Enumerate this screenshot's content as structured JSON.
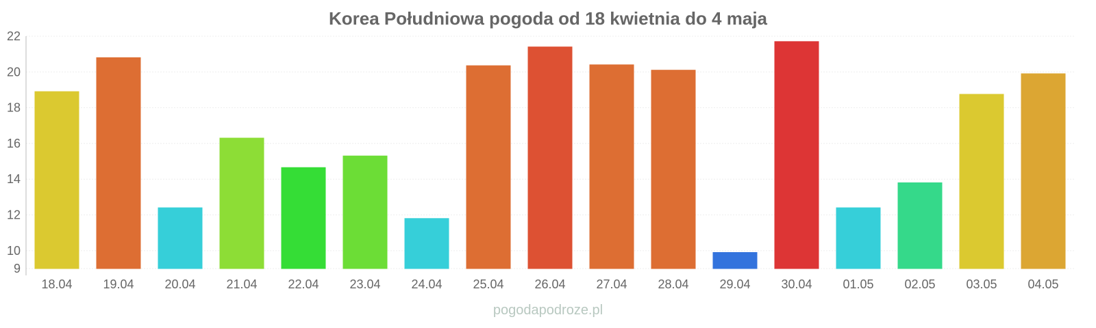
{
  "chart_data": {
    "type": "bar",
    "title": "Korea Południowa pogoda od 18 kwietnia do 4 maja",
    "xlabel": "",
    "ylabel": "",
    "ylim": [
      9,
      22
    ],
    "yticks": [
      9,
      10,
      12,
      14,
      16,
      18,
      20,
      22
    ],
    "grid": true,
    "categories": [
      "18.04",
      "19.04",
      "20.04",
      "21.04",
      "22.04",
      "23.04",
      "24.04",
      "25.04",
      "26.04",
      "27.04",
      "28.04",
      "29.04",
      "30.04",
      "01.05",
      "02.05",
      "03.05",
      "04.05"
    ],
    "values": [
      18.9,
      20.8,
      12.4,
      16.3,
      14.65,
      15.3,
      11.8,
      20.35,
      21.4,
      20.4,
      20.1,
      9.9,
      21.7,
      12.4,
      13.8,
      18.75,
      19.9
    ],
    "colors": [
      "#dbc930",
      "#dd6e33",
      "#36cfd9",
      "#8ddd36",
      "#35dd36",
      "#6cdd36",
      "#36cfd9",
      "#dd6e33",
      "#dd5133",
      "#dd6e33",
      "#dd6e33",
      "#3373dd",
      "#dd3535",
      "#36cfd9",
      "#35d98a",
      "#dbc930",
      "#dca633"
    ]
  },
  "watermark": "pogodapodroze.pl"
}
